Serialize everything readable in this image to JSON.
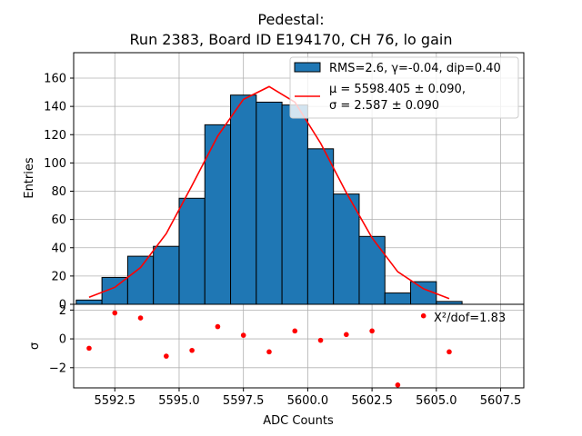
{
  "chart_data": [
    {
      "type": "bar",
      "panel": "histogram",
      "title_line1": "Pedestal:",
      "title_line2": "Run 2383, Board ID E194170, CH 76, lo gain",
      "ylabel": "Entries",
      "xlim": [
        5590.9,
        5608.4
      ],
      "ylim": [
        0,
        178
      ],
      "yticks": [
        0,
        20,
        40,
        60,
        80,
        100,
        120,
        140,
        160
      ],
      "ytick_labels": [
        "0",
        "20",
        "40",
        "60",
        "80",
        "100",
        "120",
        "140",
        "160"
      ],
      "grid": true,
      "legend_position": "top-right",
      "bin_width": 1,
      "bins": [
        {
          "left": 5591,
          "value": 3
        },
        {
          "left": 5592,
          "value": 19
        },
        {
          "left": 5593,
          "value": 34
        },
        {
          "left": 5594,
          "value": 41
        },
        {
          "left": 5595,
          "value": 75
        },
        {
          "left": 5596,
          "value": 127
        },
        {
          "left": 5597,
          "value": 148
        },
        {
          "left": 5598,
          "value": 143
        },
        {
          "left": 5599,
          "value": 141
        },
        {
          "left": 5600,
          "value": 110
        },
        {
          "left": 5601,
          "value": 78
        },
        {
          "left": 5602,
          "value": 48
        },
        {
          "left": 5603,
          "value": 8
        },
        {
          "left": 5604,
          "value": 16
        },
        {
          "left": 5605,
          "value": 2
        }
      ],
      "fit_line": {
        "x": [
          5591.5,
          5592.5,
          5593.5,
          5594.5,
          5595.5,
          5596.5,
          5597.5,
          5598.5,
          5599.5,
          5600.5,
          5601.5,
          5602.5,
          5603.5,
          5604.5,
          5605.5
        ],
        "y": [
          5,
          12,
          26,
          50,
          84,
          119,
          145,
          154,
          143,
          114,
          79,
          47,
          23,
          11,
          4
        ]
      },
      "legend": [
        {
          "label": "RMS=2.6, γ=-0.04, dip=0.40",
          "kind": "patch",
          "color": "#1f77b4"
        },
        {
          "label_line1": "μ = 5598.405 ± 0.090,",
          "label_line2": "σ = 2.587 ± 0.090",
          "kind": "line",
          "color": "#ff0000"
        }
      ],
      "colors": {
        "bar_fill": "#1f77b4",
        "bar_edge": "#000000",
        "fit": "#ff0000"
      }
    },
    {
      "type": "scatter",
      "panel": "residuals",
      "xlabel": "ADC Counts",
      "ylabel": "σ",
      "xlim": [
        5590.9,
        5608.4
      ],
      "ylim": [
        -3.4,
        2.4
      ],
      "yticks": [
        -2,
        0,
        2
      ],
      "ytick_labels": [
        "−2",
        "0",
        "2"
      ],
      "xticks": [
        5592.5,
        5595.0,
        5597.5,
        5600.0,
        5602.5,
        5605.0,
        5607.5
      ],
      "xtick_labels": [
        "5592.5",
        "5595.0",
        "5597.5",
        "5600.0",
        "5602.5",
        "5605.0",
        "5607.5"
      ],
      "grid": true,
      "annotation": "X²/dof=1.83",
      "points": {
        "x": [
          5591.5,
          5592.5,
          5593.5,
          5594.5,
          5595.5,
          5596.5,
          5597.5,
          5598.5,
          5599.5,
          5600.5,
          5601.5,
          5602.5,
          5603.5,
          5604.5,
          5605.5
        ],
        "y": [
          -0.65,
          1.8,
          1.45,
          -1.2,
          -0.8,
          0.85,
          0.25,
          -0.9,
          0.55,
          -0.1,
          0.3,
          0.55,
          -3.2,
          1.6,
          -0.9
        ]
      },
      "colors": {
        "points": "#ff0000"
      }
    }
  ]
}
